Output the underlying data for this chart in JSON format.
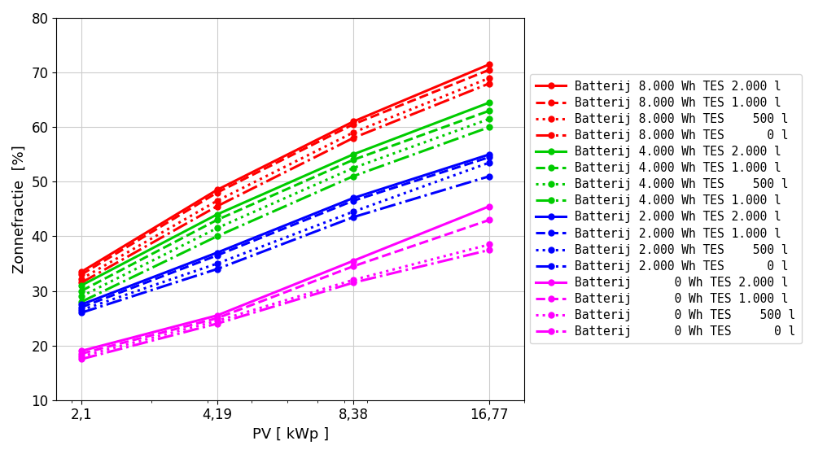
{
  "x": [
    2.1,
    4.19,
    8.38,
    16.77
  ],
  "xlabel": "PV [ kWp ]",
  "ylabel": "Zonnefractie  [%]",
  "ylim": [
    10,
    80
  ],
  "xlim_log": [
    1.85,
    20.0
  ],
  "xtick_labels": [
    "2,1",
    "4,19",
    "8,38",
    "16,77"
  ],
  "grid": true,
  "series": [
    {
      "label": "Batterij 8.000 Wh TES 2.000 l",
      "color": "#ff0000",
      "linestyle": "-",
      "marker": "o",
      "markersize": 5,
      "linewidth": 2.2,
      "values": [
        33.5,
        48.5,
        61.0,
        71.5
      ]
    },
    {
      "label": "Batterij 8.000 Wh TES 1.000 l",
      "color": "#ff0000",
      "linestyle": "--",
      "marker": "o",
      "markersize": 5,
      "linewidth": 2.2,
      "values": [
        33.0,
        48.0,
        60.5,
        70.5
      ]
    },
    {
      "label": "Batterij 8.000 Wh TES    500 l",
      "color": "#ff0000",
      "linestyle": ":",
      "marker": "o",
      "markersize": 5,
      "linewidth": 2.2,
      "values": [
        32.2,
        46.5,
        59.0,
        69.0
      ]
    },
    {
      "label": "Batterij 8.000 Wh TES      0 l",
      "color": "#ff0000",
      "linestyle": "-.",
      "marker": "o",
      "markersize": 5,
      "linewidth": 2.2,
      "values": [
        31.5,
        45.5,
        58.0,
        68.0
      ]
    },
    {
      "label": "Batterij 4.000 Wh TES 2.000 l",
      "color": "#00cc00",
      "linestyle": "-",
      "marker": "o",
      "markersize": 5,
      "linewidth": 2.2,
      "values": [
        31.0,
        44.0,
        55.0,
        64.5
      ]
    },
    {
      "label": "Batterij 4.000 Wh TES 1.000 l",
      "color": "#00cc00",
      "linestyle": "--",
      "marker": "o",
      "markersize": 5,
      "linewidth": 2.2,
      "values": [
        30.0,
        43.0,
        54.0,
        63.0
      ]
    },
    {
      "label": "Batterij 4.000 Wh TES    500 l",
      "color": "#00cc00",
      "linestyle": ":",
      "marker": "o",
      "markersize": 5,
      "linewidth": 2.2,
      "values": [
        29.0,
        41.5,
        52.5,
        61.5
      ]
    },
    {
      "label": "Batterij 4.000 Wh TES 1.000 l",
      "color": "#00cc00",
      "linestyle": "-.",
      "marker": "o",
      "markersize": 5,
      "linewidth": 2.2,
      "values": [
        28.0,
        40.0,
        51.0,
        60.0
      ]
    },
    {
      "label": "Batterij 2.000 Wh TES 2.000 l",
      "color": "#0000ff",
      "linestyle": "-",
      "marker": "o",
      "markersize": 5,
      "linewidth": 2.2,
      "values": [
        27.5,
        37.0,
        47.0,
        55.0
      ]
    },
    {
      "label": "Batterij 2.000 Wh TES 1.000 l",
      "color": "#0000ff",
      "linestyle": "--",
      "marker": "o",
      "markersize": 5,
      "linewidth": 2.2,
      "values": [
        27.0,
        36.5,
        46.5,
        54.5
      ]
    },
    {
      "label": "Batterij 2.000 Wh TES    500 l",
      "color": "#0000ff",
      "linestyle": ":",
      "marker": "o",
      "markersize": 5,
      "linewidth": 2.2,
      "values": [
        26.5,
        35.0,
        44.5,
        53.5
      ]
    },
    {
      "label": "Batterij 2.000 Wh TES      0 l",
      "color": "#0000ff",
      "linestyle": "-.",
      "marker": "o",
      "markersize": 5,
      "linewidth": 2.2,
      "values": [
        26.0,
        34.0,
        43.5,
        51.0
      ]
    },
    {
      "label": "Batterij      0 Wh TES 2.000 l",
      "color": "#ff00ff",
      "linestyle": "-",
      "marker": "o",
      "markersize": 5,
      "linewidth": 2.2,
      "values": [
        19.0,
        25.5,
        35.5,
        45.5
      ]
    },
    {
      "label": "Batterij      0 Wh TES 1.000 l",
      "color": "#ff00ff",
      "linestyle": "--",
      "marker": "o",
      "markersize": 5,
      "linewidth": 2.2,
      "values": [
        18.5,
        25.0,
        34.5,
        43.0
      ]
    },
    {
      "label": "Batterij      0 Wh TES    500 l",
      "color": "#ff00ff",
      "linestyle": ":",
      "marker": "o",
      "markersize": 5,
      "linewidth": 2.2,
      "values": [
        18.0,
        24.5,
        32.0,
        38.5
      ]
    },
    {
      "label": "Batterij      0 Wh TES      0 l",
      "color": "#ff00ff",
      "linestyle": "-.",
      "marker": "o",
      "markersize": 5,
      "linewidth": 2.2,
      "values": [
        17.5,
        24.0,
        31.5,
        37.5
      ]
    }
  ],
  "background_color": "#ffffff",
  "legend_fontsize": 10.5,
  "axis_fontsize": 13,
  "tick_fontsize": 12
}
